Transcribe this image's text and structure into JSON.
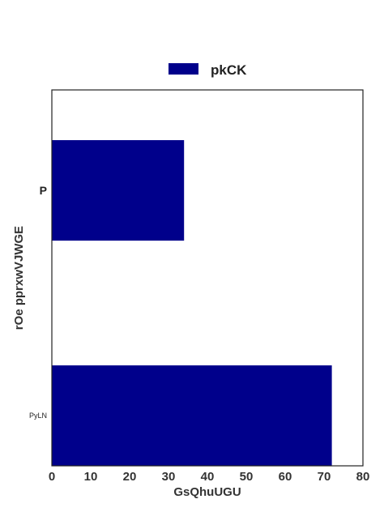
{
  "chart_data": {
    "type": "bar",
    "orientation": "horizontal",
    "categories": [
      "PyLN",
      "P"
    ],
    "series": [
      {
        "name": "pkCK",
        "values": [
          72,
          34
        ],
        "color": "#00008b"
      }
    ],
    "xlabel": "GsQhuUGU",
    "ylabel": "rOe pprxwVJWGE",
    "xlim": [
      0,
      80
    ],
    "xticks": [
      0,
      10,
      20,
      30,
      40,
      50,
      60,
      70,
      80
    ],
    "grid": false,
    "legend_position": "top-center"
  }
}
